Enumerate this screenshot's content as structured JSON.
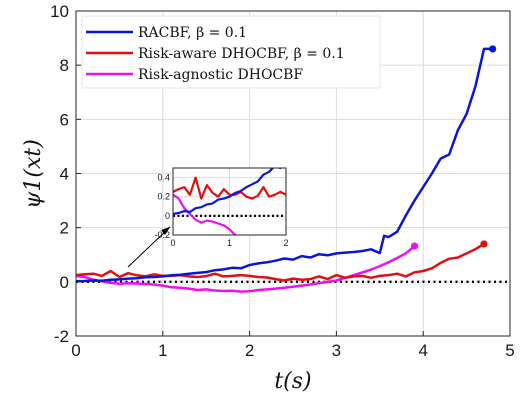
{
  "chart_data": {
    "type": "line",
    "xlabel": "t(s)",
    "ylabel": "ψ1(xt)",
    "xlim": [
      0,
      5
    ],
    "ylim": [
      -2,
      10
    ],
    "xticks": [
      "0",
      "1",
      "2",
      "3",
      "4",
      "5"
    ],
    "yticks": [
      "-2",
      "0",
      "2",
      "4",
      "6",
      "8",
      "10"
    ],
    "grid": true,
    "legend_position": "top-left",
    "reference_line": {
      "y": 0,
      "style": "dotted",
      "color": "#000000"
    },
    "series": [
      {
        "name": "RACBF, β = 0.1",
        "color": "#0a16d6",
        "end_marker": true,
        "x": [
          0,
          0.1,
          0.2,
          0.3,
          0.4,
          0.5,
          0.6,
          0.7,
          0.8,
          0.9,
          1.0,
          1.1,
          1.2,
          1.3,
          1.4,
          1.5,
          1.6,
          1.7,
          1.8,
          1.9,
          2.0,
          2.1,
          2.2,
          2.3,
          2.4,
          2.5,
          2.6,
          2.7,
          2.8,
          2.9,
          3.0,
          3.1,
          3.2,
          3.3,
          3.4,
          3.5,
          3.55,
          3.6,
          3.7,
          3.8,
          3.9,
          4.0,
          4.1,
          4.2,
          4.3,
          4.4,
          4.5,
          4.6,
          4.7,
          4.8
        ],
        "y": [
          0.02,
          0.03,
          0.05,
          0.04,
          0.08,
          0.09,
          0.12,
          0.13,
          0.17,
          0.18,
          0.2,
          0.24,
          0.26,
          0.3,
          0.33,
          0.36,
          0.43,
          0.46,
          0.52,
          0.5,
          0.62,
          0.68,
          0.72,
          0.78,
          0.86,
          0.82,
          0.95,
          0.9,
          1.02,
          0.98,
          1.05,
          1.08,
          1.1,
          1.14,
          1.2,
          1.06,
          1.7,
          1.65,
          1.85,
          2.45,
          3.0,
          3.5,
          4.0,
          4.55,
          4.7,
          5.6,
          6.2,
          7.2,
          8.6,
          8.6
        ]
      },
      {
        "name": "Risk-aware DHOCBF, β = 0.1",
        "color": "#e01010",
        "end_marker": true,
        "x": [
          0,
          0.1,
          0.2,
          0.3,
          0.4,
          0.5,
          0.6,
          0.7,
          0.8,
          0.9,
          1.0,
          1.1,
          1.2,
          1.3,
          1.4,
          1.5,
          1.6,
          1.7,
          1.8,
          1.9,
          2.0,
          2.1,
          2.2,
          2.3,
          2.4,
          2.5,
          2.6,
          2.7,
          2.8,
          2.9,
          3.0,
          3.1,
          3.2,
          3.3,
          3.4,
          3.5,
          3.6,
          3.7,
          3.8,
          3.9,
          4.0,
          4.1,
          4.2,
          4.3,
          4.4,
          4.5,
          4.6,
          4.7
        ],
        "y": [
          0.25,
          0.28,
          0.3,
          0.22,
          0.4,
          0.18,
          0.32,
          0.24,
          0.2,
          0.28,
          0.22,
          0.22,
          0.25,
          0.2,
          0.18,
          0.21,
          0.3,
          0.2,
          0.22,
          0.25,
          0.22,
          0.18,
          0.16,
          0.1,
          0.05,
          0.12,
          0.08,
          0.1,
          0.2,
          0.1,
          0.25,
          0.15,
          0.2,
          0.22,
          0.15,
          0.22,
          0.25,
          0.3,
          0.2,
          0.35,
          0.4,
          0.5,
          0.7,
          0.85,
          0.9,
          1.05,
          1.2,
          1.4
        ]
      },
      {
        "name": "Risk-agnostic DHOCBF",
        "color": "#ee10ee",
        "end_marker": true,
        "x": [
          0,
          0.1,
          0.2,
          0.3,
          0.4,
          0.5,
          0.6,
          0.7,
          0.8,
          0.9,
          1.0,
          1.1,
          1.2,
          1.3,
          1.4,
          1.5,
          1.6,
          1.7,
          1.8,
          1.9,
          2.0,
          2.1,
          2.2,
          2.3,
          2.4,
          2.5,
          2.6,
          2.7,
          2.8,
          2.9,
          3.0,
          3.1,
          3.2,
          3.3,
          3.4,
          3.5,
          3.6,
          3.7,
          3.8,
          3.9
        ],
        "y": [
          0.22,
          0.18,
          0.08,
          0.02,
          -0.04,
          -0.07,
          -0.05,
          -0.06,
          -0.08,
          -0.1,
          -0.14,
          -0.2,
          -0.22,
          -0.25,
          -0.3,
          -0.28,
          -0.32,
          -0.34,
          -0.33,
          -0.36,
          -0.35,
          -0.3,
          -0.28,
          -0.25,
          -0.22,
          -0.18,
          -0.14,
          -0.1,
          -0.05,
          0.0,
          0.05,
          0.15,
          0.25,
          0.35,
          0.45,
          0.58,
          0.72,
          0.88,
          1.05,
          1.32
        ]
      }
    ],
    "inset": {
      "xlim": [
        0,
        2
      ],
      "ylim": [
        -0.2,
        0.5
      ],
      "xticks": [
        "0",
        "1",
        "2"
      ],
      "yticks": [
        "-0.2",
        "0",
        "0.2",
        "0.4"
      ]
    }
  }
}
